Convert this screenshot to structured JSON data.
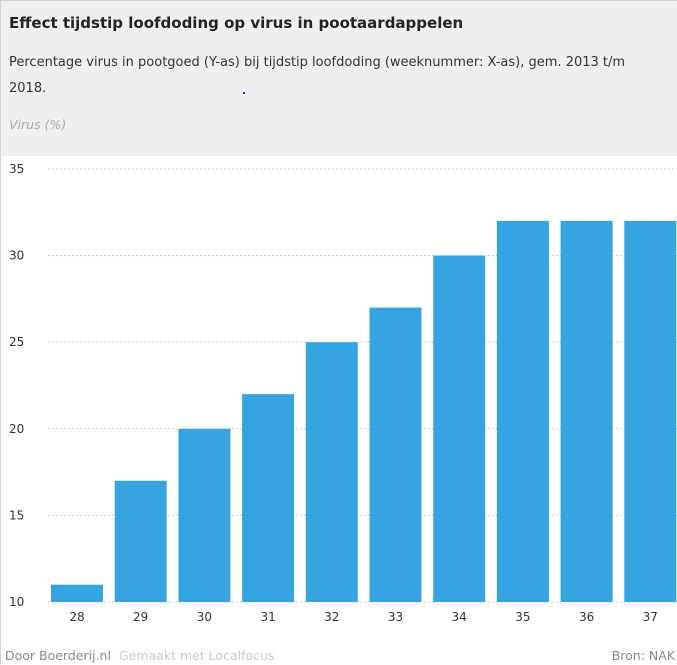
{
  "header": {
    "title": "Effect tijdstip loofdoding op virus in pootaardappelen",
    "subtitle": "Percentage virus in pootgoed (Y-as) bij tijdstip loofdoding (weeknummer: X-as), gem. 2013 t/m 2018."
  },
  "footer": {
    "credit": "Door Boerderij.nl",
    "made_with": "Gemaakt met Localfocus",
    "source": "Bron: NAK"
  },
  "colors": {
    "bar": "#36a4e0",
    "gridline": "#bbbbbb",
    "background": "#efefef",
    "plot_background": "#ffffff"
  },
  "chart_data": {
    "type": "bar",
    "title": "Effect tijdstip loofdoding op virus in pootaardappelen",
    "ylabel": "Virus (%)",
    "xlabel": "",
    "categories": [
      "28",
      "29",
      "30",
      "31",
      "32",
      "33",
      "34",
      "35",
      "36",
      "37"
    ],
    "values": [
      11,
      17,
      20,
      22,
      25,
      27,
      30,
      32,
      32,
      32
    ],
    "ylim": [
      10,
      35
    ],
    "yticks": [
      10,
      15,
      20,
      25,
      30,
      35
    ],
    "grid": true
  }
}
